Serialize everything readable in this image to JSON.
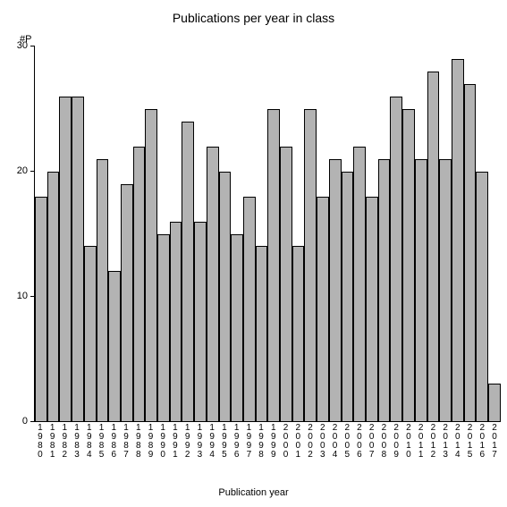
{
  "chart": {
    "type": "bar",
    "title": "Publications per year in class",
    "title_fontsize": 14,
    "y_axis_unit": "#P",
    "x_axis_label": "Publication year",
    "label_fontsize": 11,
    "categories": [
      "1980",
      "1981",
      "1982",
      "1983",
      "1984",
      "1985",
      "1986",
      "1987",
      "1988",
      "1989",
      "1990",
      "1991",
      "1992",
      "1993",
      "1994",
      "1995",
      "1996",
      "1997",
      "1998",
      "1999",
      "2000",
      "2001",
      "2002",
      "2003",
      "2004",
      "2005",
      "2006",
      "2007",
      "2008",
      "2009",
      "2010",
      "2011",
      "2012",
      "2013",
      "2014",
      "2015",
      "2016",
      "2017"
    ],
    "values": [
      18,
      20,
      26,
      26,
      14,
      21,
      12,
      19,
      22,
      25,
      15,
      16,
      24,
      16,
      22,
      20,
      15,
      18,
      14,
      25,
      22,
      14,
      25,
      18,
      21,
      20,
      22,
      18,
      21,
      26,
      25,
      21,
      28,
      21,
      29,
      27,
      20,
      3
    ],
    "ylim": [
      0,
      30
    ],
    "yticks": [
      0,
      10,
      20,
      30
    ],
    "bar_color": "#b3b3b3",
    "bar_border_color": "#000000",
    "axis_color": "#000000",
    "background_color": "#ffffff",
    "text_color": "#000000"
  }
}
